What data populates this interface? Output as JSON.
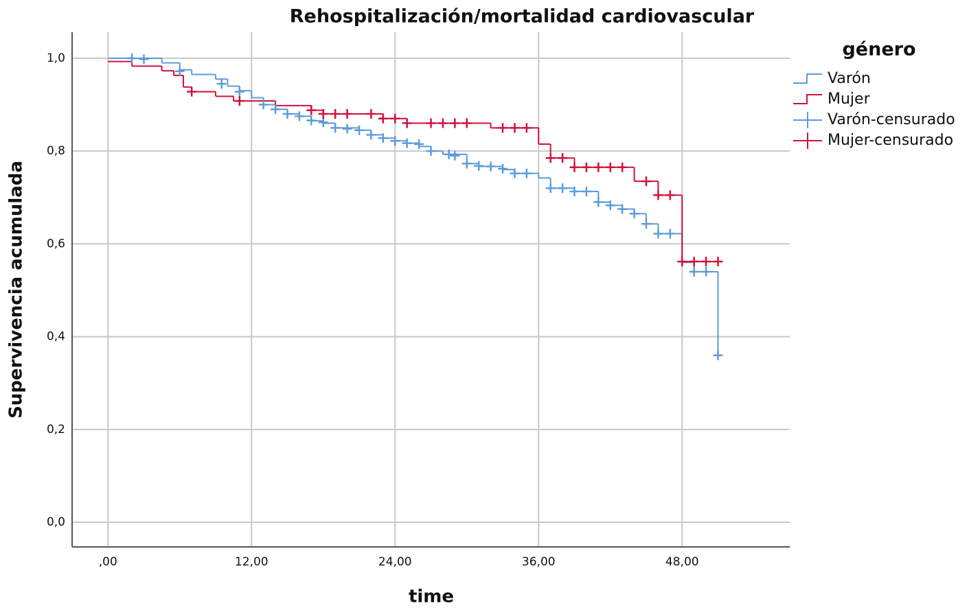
{
  "chart_data": {
    "type": "kaplan-meier",
    "title": "Rehospitalización/mortalidad cardiovascular",
    "x_label": "time",
    "y_label": "Supervivencia acumulada",
    "legend_title": "género",
    "legend": "right",
    "grid": true,
    "xlim": [
      -3,
      57
    ],
    "ylim": [
      -0.053,
      1.056
    ],
    "xticks": [
      {
        "value": 0,
        "label": ",00"
      },
      {
        "value": 12,
        "label": "12,00"
      },
      {
        "value": 24,
        "label": "24,00"
      },
      {
        "value": 36,
        "label": "36,00"
      },
      {
        "value": 48,
        "label": "48,00"
      }
    ],
    "yticks": [
      {
        "value": 0,
        "label": "0,0"
      },
      {
        "value": 0.2,
        "label": "0,2"
      },
      {
        "value": 0.4,
        "label": "0,4"
      },
      {
        "value": 0.6,
        "label": "0,6"
      },
      {
        "value": 0.8,
        "label": "0,8"
      },
      {
        "value": 1.0,
        "label": "1,0"
      }
    ],
    "series": [
      {
        "name": "Varón",
        "style": "step",
        "color": "#5b9bdc",
        "x": [
          0,
          4.5,
          6,
          7,
          9,
          10,
          11,
          12,
          13,
          14,
          15,
          16,
          17,
          18,
          19,
          21,
          22,
          23,
          24,
          25,
          26,
          27,
          28,
          30,
          31,
          33,
          34,
          36,
          37,
          39,
          41,
          42,
          43,
          44,
          45,
          46,
          48,
          49,
          51
        ],
        "values": [
          1.0,
          0.99,
          0.975,
          0.965,
          0.955,
          0.94,
          0.93,
          0.915,
          0.9,
          0.89,
          0.88,
          0.875,
          0.865,
          0.86,
          0.85,
          0.845,
          0.835,
          0.828,
          0.822,
          0.817,
          0.81,
          0.8,
          0.793,
          0.773,
          0.767,
          0.76,
          0.752,
          0.742,
          0.72,
          0.713,
          0.69,
          0.683,
          0.675,
          0.665,
          0.643,
          0.622,
          0.56,
          0.54,
          0.36
        ]
      },
      {
        "name": "Mujer",
        "style": "step",
        "color": "#d0103a",
        "x": [
          0,
          2,
          4.5,
          5.5,
          6.3,
          7,
          9,
          10.5,
          14,
          17,
          18,
          23,
          25,
          32,
          36,
          37,
          39,
          44,
          46,
          48,
          51
        ],
        "values": [
          0.993,
          0.983,
          0.973,
          0.963,
          0.938,
          0.928,
          0.918,
          0.908,
          0.898,
          0.888,
          0.88,
          0.87,
          0.86,
          0.85,
          0.815,
          0.785,
          0.765,
          0.735,
          0.705,
          0.562,
          0.562
        ]
      },
      {
        "name": "Varón-censurado",
        "style": "plus",
        "color": "#5b9bdc",
        "x": [
          2,
          3,
          6,
          9.5,
          11,
          13,
          14,
          15,
          16,
          17,
          18,
          19,
          20,
          21,
          22,
          23,
          24,
          25,
          26,
          27,
          28.5,
          29,
          30,
          31,
          32,
          33,
          34,
          35,
          37,
          38,
          39,
          40,
          41,
          42,
          43,
          44,
          45,
          46,
          47,
          49,
          50,
          51
        ],
        "values": [
          1.0,
          0.998,
          0.972,
          0.945,
          0.928,
          0.9,
          0.89,
          0.88,
          0.875,
          0.866,
          0.862,
          0.85,
          0.848,
          0.845,
          0.835,
          0.828,
          0.822,
          0.817,
          0.815,
          0.8,
          0.793,
          0.79,
          0.773,
          0.768,
          0.767,
          0.762,
          0.752,
          0.752,
          0.72,
          0.72,
          0.713,
          0.713,
          0.69,
          0.683,
          0.675,
          0.665,
          0.643,
          0.622,
          0.622,
          0.54,
          0.54,
          0.36
        ]
      },
      {
        "name": "Mujer-censurado",
        "style": "plus",
        "color": "#d0103a",
        "x": [
          7,
          11,
          17,
          18,
          19,
          20,
          22,
          23,
          24,
          25,
          27,
          28,
          29,
          30,
          33,
          34,
          35,
          37,
          38,
          39,
          40,
          41,
          42,
          43,
          45,
          46,
          47,
          48,
          49,
          50,
          51
        ],
        "values": [
          0.928,
          0.908,
          0.888,
          0.88,
          0.88,
          0.88,
          0.88,
          0.87,
          0.87,
          0.86,
          0.86,
          0.86,
          0.86,
          0.86,
          0.85,
          0.85,
          0.85,
          0.785,
          0.785,
          0.765,
          0.765,
          0.765,
          0.765,
          0.765,
          0.735,
          0.705,
          0.705,
          0.562,
          0.562,
          0.562,
          0.562
        ]
      }
    ]
  }
}
